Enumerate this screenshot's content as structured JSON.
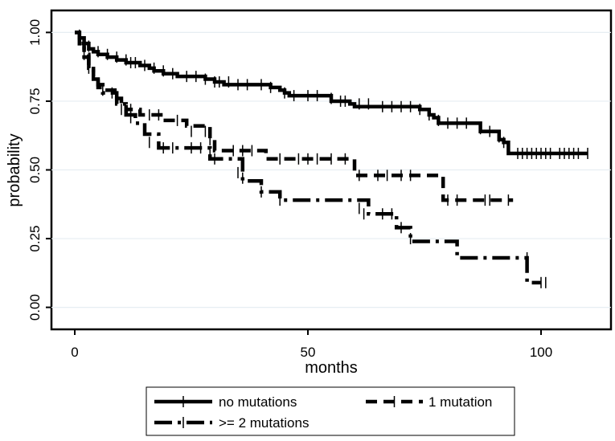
{
  "chart_data": {
    "type": "line",
    "title": "",
    "xlabel": "months",
    "ylabel": "probability",
    "xlim": [
      -5,
      115
    ],
    "ylim": [
      -0.08,
      1.08
    ],
    "xticks": [
      0,
      50,
      100
    ],
    "xtick_labels": [
      "0",
      "50",
      "100"
    ],
    "yticks": [
      0,
      0.25,
      0.5,
      0.75,
      1.0
    ],
    "ytick_labels": [
      "0.00",
      "0.25",
      "0.50",
      "0.75",
      "1.00"
    ],
    "grid": "horizontal",
    "legend_position": "bottom",
    "series": [
      {
        "name": "no mutations",
        "style": "solid",
        "color": "#000000",
        "steps": [
          [
            0,
            1.0
          ],
          [
            1,
            0.98
          ],
          [
            2,
            0.96
          ],
          [
            3,
            0.94
          ],
          [
            4,
            0.93
          ],
          [
            5,
            0.92
          ],
          [
            7,
            0.91
          ],
          [
            9,
            0.9
          ],
          [
            11,
            0.89
          ],
          [
            14,
            0.88
          ],
          [
            16,
            0.87
          ],
          [
            17,
            0.86
          ],
          [
            19,
            0.85
          ],
          [
            22,
            0.84
          ],
          [
            28,
            0.83
          ],
          [
            30,
            0.82
          ],
          [
            32,
            0.81
          ],
          [
            42,
            0.8
          ],
          [
            44,
            0.79
          ],
          [
            45,
            0.78
          ],
          [
            46,
            0.77
          ],
          [
            55,
            0.75
          ],
          [
            59,
            0.74
          ],
          [
            60,
            0.73
          ],
          [
            74,
            0.72
          ],
          [
            76,
            0.7
          ],
          [
            77,
            0.69
          ],
          [
            78,
            0.67
          ],
          [
            87,
            0.64
          ],
          [
            91,
            0.61
          ],
          [
            92,
            0.6
          ],
          [
            93,
            0.56
          ],
          [
            110,
            0.56
          ]
        ],
        "censored": [
          [
            1,
            0.99
          ],
          [
            3,
            0.95
          ],
          [
            5,
            0.93
          ],
          [
            7,
            0.92
          ],
          [
            9,
            0.91
          ],
          [
            11,
            0.9
          ],
          [
            12,
            0.89
          ],
          [
            13,
            0.89
          ],
          [
            15,
            0.88
          ],
          [
            17,
            0.87
          ],
          [
            19,
            0.86
          ],
          [
            21,
            0.85
          ],
          [
            24,
            0.84
          ],
          [
            26,
            0.84
          ],
          [
            28,
            0.83
          ],
          [
            30,
            0.82
          ],
          [
            31,
            0.82
          ],
          [
            33,
            0.82
          ],
          [
            35,
            0.81
          ],
          [
            37,
            0.81
          ],
          [
            40,
            0.81
          ],
          [
            42,
            0.8
          ],
          [
            45,
            0.78
          ],
          [
            47,
            0.77
          ],
          [
            50,
            0.77
          ],
          [
            52,
            0.77
          ],
          [
            55,
            0.76
          ],
          [
            57,
            0.75
          ],
          [
            58,
            0.75
          ],
          [
            61,
            0.74
          ],
          [
            63,
            0.74
          ],
          [
            66,
            0.73
          ],
          [
            68,
            0.73
          ],
          [
            70,
            0.73
          ],
          [
            72,
            0.73
          ],
          [
            74,
            0.72
          ],
          [
            76,
            0.7
          ],
          [
            78,
            0.68
          ],
          [
            80,
            0.67
          ],
          [
            82,
            0.67
          ],
          [
            84,
            0.67
          ],
          [
            87,
            0.65
          ],
          [
            89,
            0.64
          ],
          [
            91,
            0.62
          ],
          [
            92,
            0.6
          ],
          [
            95,
            0.56
          ],
          [
            96,
            0.56
          ],
          [
            97,
            0.56
          ],
          [
            98,
            0.56
          ],
          [
            99,
            0.56
          ],
          [
            100,
            0.56
          ],
          [
            101,
            0.56
          ],
          [
            102,
            0.56
          ],
          [
            104,
            0.56
          ],
          [
            105,
            0.56
          ],
          [
            106,
            0.56
          ],
          [
            107,
            0.56
          ],
          [
            108,
            0.56
          ],
          [
            110,
            0.56
          ]
        ]
      },
      {
        "name": "1 mutation",
        "style": "dashed",
        "color": "#000000",
        "steps": [
          [
            0,
            1.0
          ],
          [
            1,
            0.96
          ],
          [
            2,
            0.92
          ],
          [
            3,
            0.88
          ],
          [
            4,
            0.84
          ],
          [
            5,
            0.81
          ],
          [
            6,
            0.79
          ],
          [
            9,
            0.76
          ],
          [
            10,
            0.74
          ],
          [
            11,
            0.72
          ],
          [
            14,
            0.7
          ],
          [
            19,
            0.68
          ],
          [
            24,
            0.66
          ],
          [
            29,
            0.61
          ],
          [
            30,
            0.57
          ],
          [
            41,
            0.54
          ],
          [
            60,
            0.48
          ],
          [
            79,
            0.39
          ],
          [
            94,
            0.39
          ]
        ],
        "censored": [
          [
            2,
            0.92
          ],
          [
            12,
            0.72
          ],
          [
            16,
            0.7
          ],
          [
            18,
            0.7
          ],
          [
            22,
            0.68
          ],
          [
            25,
            0.64
          ],
          [
            28,
            0.64
          ],
          [
            29,
            0.61
          ],
          [
            34,
            0.57
          ],
          [
            36,
            0.57
          ],
          [
            38,
            0.57
          ],
          [
            44,
            0.54
          ],
          [
            48,
            0.54
          ],
          [
            50,
            0.54
          ],
          [
            52,
            0.54
          ],
          [
            55,
            0.54
          ],
          [
            58,
            0.54
          ],
          [
            61,
            0.48
          ],
          [
            65,
            0.48
          ],
          [
            67,
            0.48
          ],
          [
            70,
            0.48
          ],
          [
            72,
            0.48
          ],
          [
            80,
            0.39
          ],
          [
            82,
            0.39
          ],
          [
            88,
            0.39
          ],
          [
            89,
            0.39
          ],
          [
            93,
            0.39
          ]
        ]
      },
      {
        "name": ">= 2 mutations",
        "style": "dashdot",
        "color": "#000000",
        "steps": [
          [
            0,
            1.0
          ],
          [
            1,
            0.95
          ],
          [
            2,
            0.91
          ],
          [
            3,
            0.87
          ],
          [
            4,
            0.83
          ],
          [
            5,
            0.8
          ],
          [
            6,
            0.78
          ],
          [
            9,
            0.74
          ],
          [
            11,
            0.7
          ],
          [
            13,
            0.67
          ],
          [
            15,
            0.63
          ],
          [
            18,
            0.58
          ],
          [
            29,
            0.54
          ],
          [
            36,
            0.46
          ],
          [
            40,
            0.42
          ],
          [
            44,
            0.39
          ],
          [
            63,
            0.34
          ],
          [
            69,
            0.29
          ],
          [
            72,
            0.24
          ],
          [
            82,
            0.18
          ],
          [
            97,
            0.09
          ],
          [
            100,
            0.09
          ]
        ],
        "censored": [
          [
            3,
            0.87
          ],
          [
            6,
            0.79
          ],
          [
            8,
            0.78
          ],
          [
            10,
            0.72
          ],
          [
            12,
            0.69
          ],
          [
            16,
            0.6
          ],
          [
            19,
            0.58
          ],
          [
            21,
            0.58
          ],
          [
            25,
            0.58
          ],
          [
            27,
            0.58
          ],
          [
            29,
            0.56
          ],
          [
            30,
            0.54
          ],
          [
            35,
            0.49
          ],
          [
            36,
            0.47
          ],
          [
            40,
            0.42
          ],
          [
            44,
            0.39
          ],
          [
            61,
            0.36
          ],
          [
            62,
            0.34
          ],
          [
            66,
            0.34
          ],
          [
            68,
            0.34
          ],
          [
            70,
            0.29
          ],
          [
            72,
            0.25
          ],
          [
            97,
            0.18
          ],
          [
            100,
            0.09
          ],
          [
            101,
            0.09
          ]
        ]
      }
    ]
  }
}
